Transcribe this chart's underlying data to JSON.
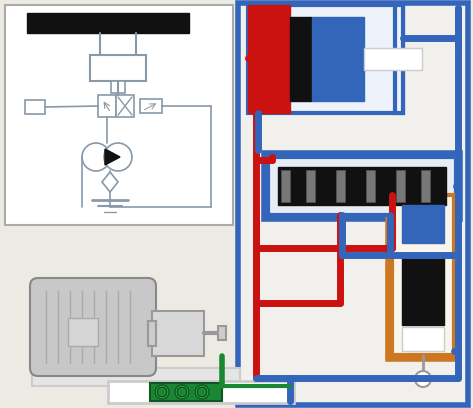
{
  "bg_color": "#ede9e3",
  "red": "#cc1111",
  "blue": "#3366bb",
  "orange": "#cc7722",
  "green": "#1a8833",
  "black": "#111111",
  "gray": "#999999",
  "lgray": "#cccccc",
  "dgray": "#666666",
  "white": "#ffffff",
  "lw_pipe": 5,
  "lw_border": 3,
  "schematic_ec": "#8899aa"
}
